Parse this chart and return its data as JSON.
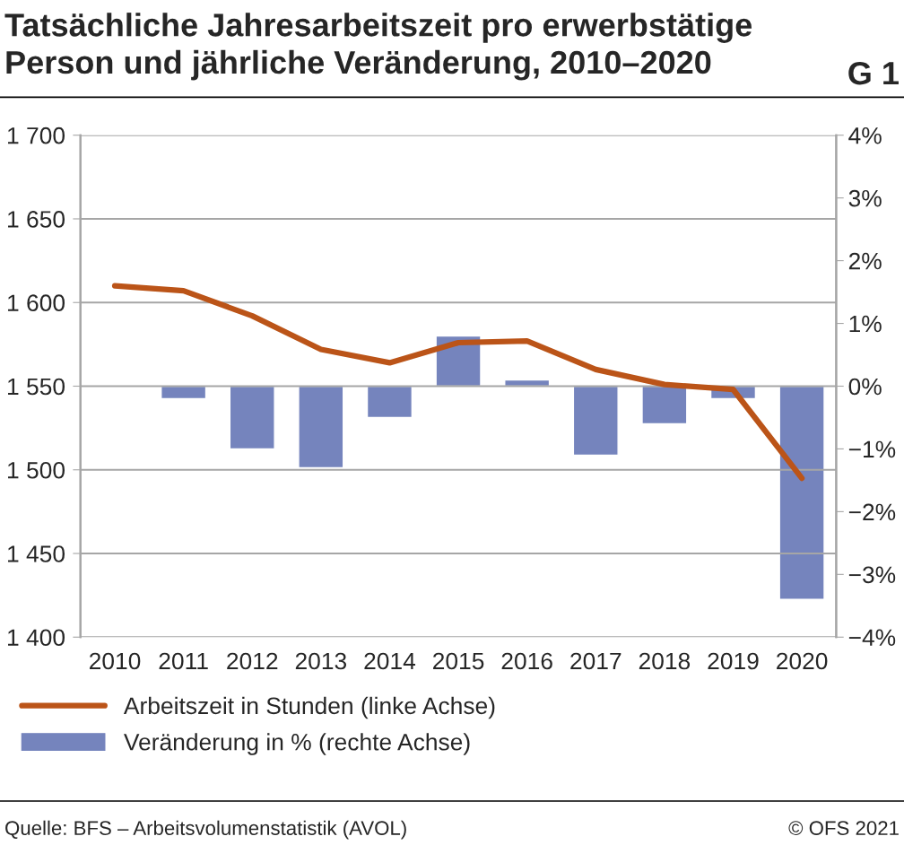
{
  "chart_data": {
    "type": "bar",
    "title": "Tatsächliche Jahresarbeitszeit pro erwerbstätige\nPerson und jährliche Veränderung, 2010–2020",
    "categories": [
      "2010",
      "2011",
      "2012",
      "2013",
      "2014",
      "2015",
      "2016",
      "2017",
      "2018",
      "2019",
      "2020"
    ],
    "series": [
      {
        "name": "Arbeitszeit in Stunden (linke Achse)",
        "type": "line",
        "color": "#bb5418",
        "values": [
          1610,
          1607,
          1592,
          1572,
          1564,
          1576,
          1577,
          1560,
          1551,
          1548,
          1495
        ]
      },
      {
        "name": "Veränderung in % (rechte Achse)",
        "axis": "y2",
        "color": "#7584bd",
        "values": [
          null,
          -0.2,
          -1.0,
          -1.3,
          -0.5,
          0.8,
          0.1,
          -1.1,
          -0.6,
          -0.2,
          -3.4
        ]
      }
    ],
    "ylim": [
      1400,
      1700
    ],
    "yticks": [
      {
        "value": 1400,
        "label": "1 400"
      },
      {
        "value": 1450,
        "label": "1 450"
      },
      {
        "value": 1500,
        "label": "1 500"
      },
      {
        "value": 1550,
        "label": "1 550"
      },
      {
        "value": 1600,
        "label": "1 600"
      },
      {
        "value": 1650,
        "label": "1 650"
      },
      {
        "value": 1700,
        "label": "1 700"
      }
    ],
    "y2lim": [
      -4,
      4
    ],
    "y2ticks": [
      {
        "value": -4,
        "label": "−4%"
      },
      {
        "value": -3,
        "label": "−3%"
      },
      {
        "value": -2,
        "label": "−2%"
      },
      {
        "value": -1,
        "label": "−1%"
      },
      {
        "value": 0,
        "label": "0%"
      },
      {
        "value": 1,
        "label": "1%"
      },
      {
        "value": 2,
        "label": "2%"
      },
      {
        "value": 3,
        "label": "3%"
      },
      {
        "value": 4,
        "label": "4%"
      }
    ],
    "grid": "y",
    "legend": "bottom",
    "annotations": [
      "G 1",
      "Quelle: BFS – Arbeitsvolumenstatistik (AVOL)",
      "© OFS 2021"
    ]
  }
}
